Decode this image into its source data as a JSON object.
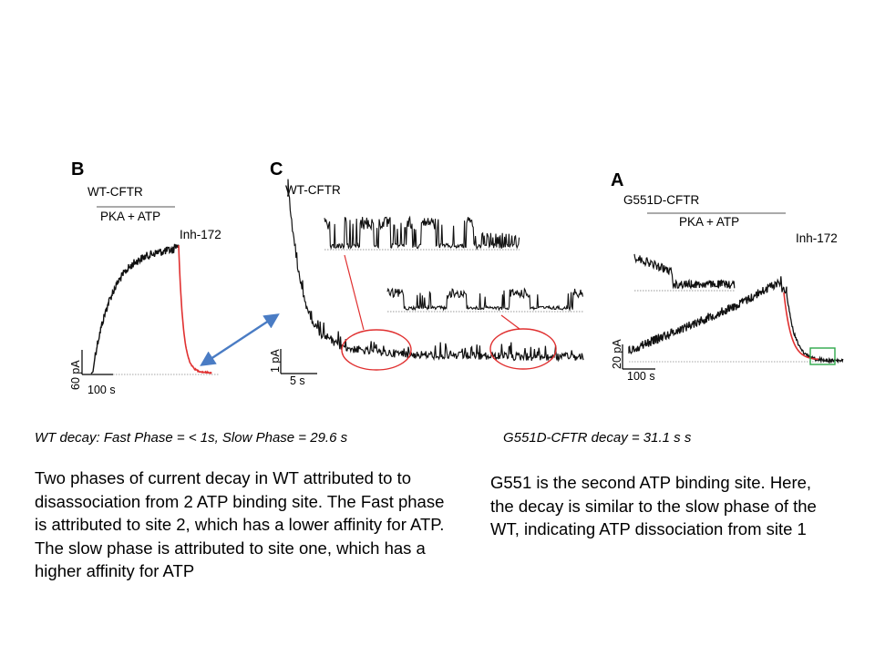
{
  "panels": {
    "B": {
      "letter": "B",
      "construct": "WT-CFTR",
      "treatment": "PKA + ATP",
      "inhibitor": "Inh-172",
      "scale_current": "60 pA",
      "scale_time": "100 s"
    },
    "C": {
      "letter": "C",
      "construct": "WT-CFTR",
      "scale_current": "1 pA",
      "scale_time": "5 s"
    },
    "A": {
      "letter": "A",
      "construct": "G551D-CFTR",
      "treatment": "PKA + ATP",
      "inhibitor": "Inh-172",
      "scale_current": "20 pA",
      "scale_time": "100 s"
    }
  },
  "colors": {
    "trace": "#111111",
    "fit": "#e03030",
    "highlight_circle": "#e03030",
    "highlight_box": "#2ea84a",
    "arrow": "#4a7cc4"
  },
  "captions": {
    "wt": "WT decay: Fast Phase = < 1s, Slow Phase = 29.6 s",
    "g551d": "G551D-CFTR decay = 31.1 s s"
  },
  "text": {
    "wt": "Two phases of current decay in WT attributed to to disassociation from 2 ATP binding site. The Fast phase is attributed to site 2, which has a lower affinity for ATP. The slow phase is attributed to site one, which has a higher affinity for ATP",
    "g551d": "G551 is the second ATP binding site. Here, the decay is similar to the slow phase of the WT, indicating ATP dissociation from site 1"
  }
}
